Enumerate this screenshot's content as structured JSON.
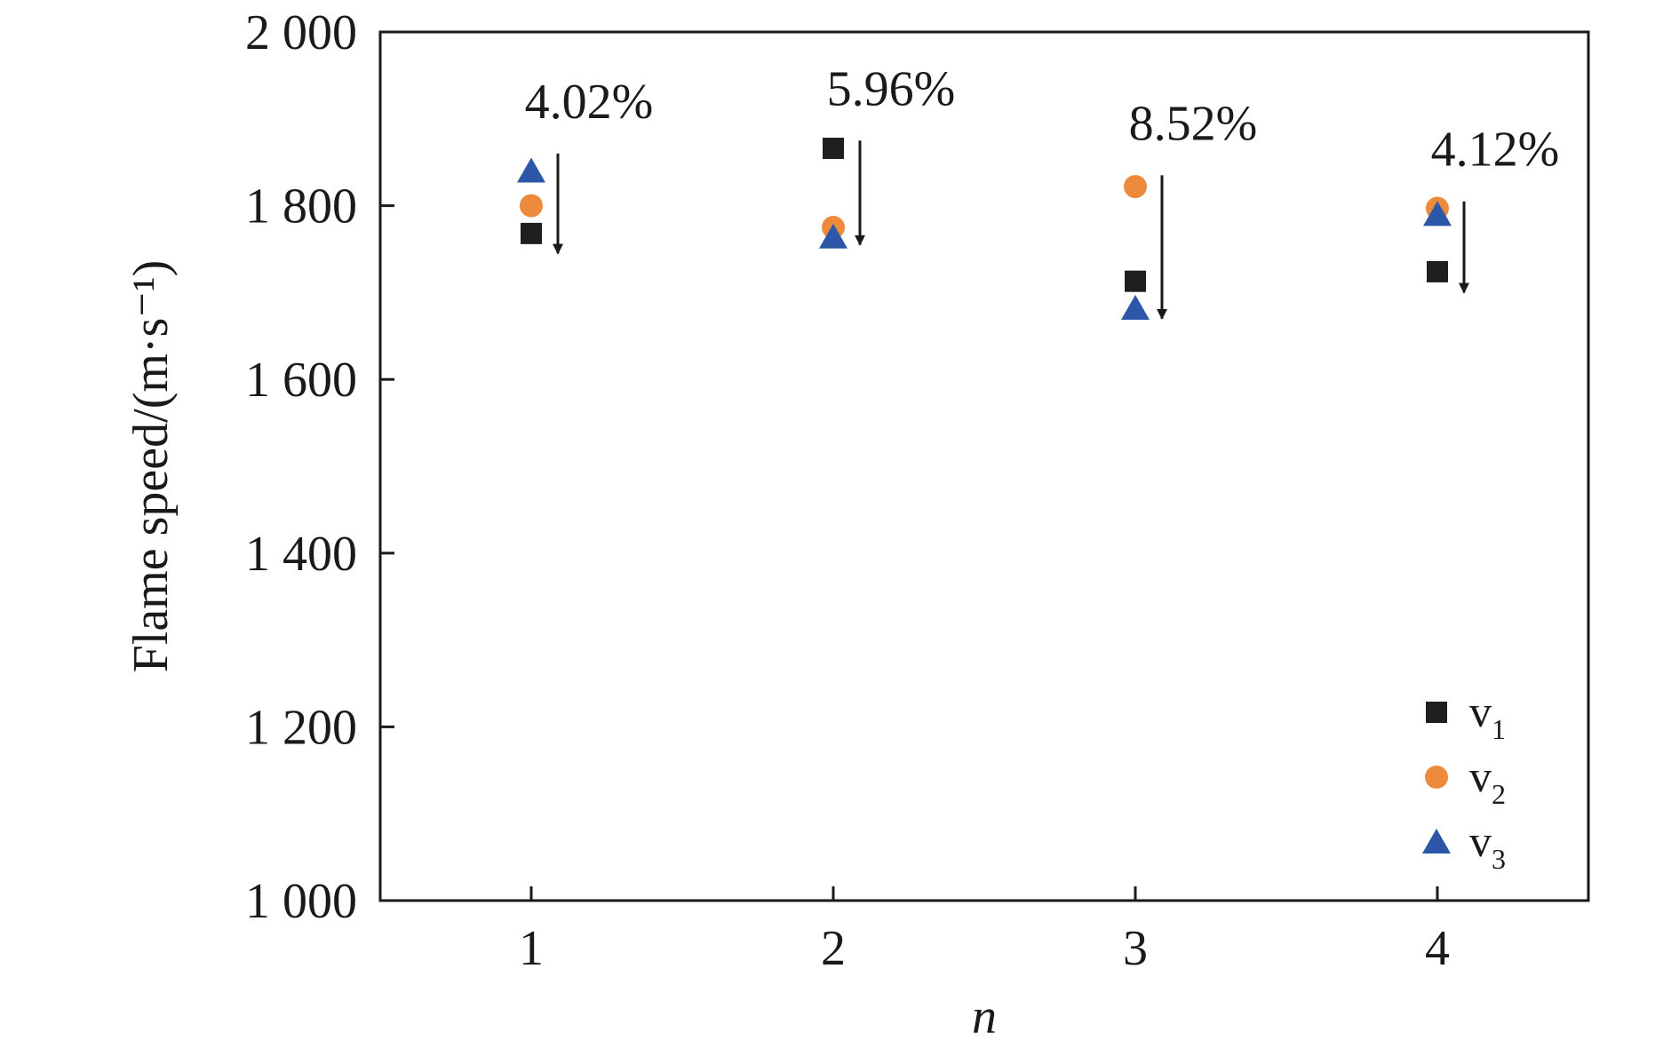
{
  "chart_data": {
    "type": "scatter",
    "xlabel": "n",
    "ylabel": "Flame speed/(m·s⁻¹)",
    "x_ticks": [
      "1",
      "2",
      "3",
      "4"
    ],
    "y_ticks": [
      "1 000",
      "1 200",
      "1 400",
      "1 600",
      "1 800",
      "2 000"
    ],
    "xlim": [
      0.5,
      4.5
    ],
    "ylim": [
      1000,
      2000
    ],
    "grid": false,
    "legend_position": "bottom-right",
    "series": [
      {
        "name": "v",
        "sub": "1",
        "marker": "square",
        "color": "#1f1f1f",
        "x": [
          1,
          2,
          3,
          4
        ],
        "y": [
          1768,
          1866,
          1713,
          1724
        ]
      },
      {
        "name": "v",
        "sub": "2",
        "marker": "circle",
        "color": "#ee8a3c",
        "x": [
          1,
          2,
          3,
          4
        ],
        "y": [
          1800,
          1775,
          1822,
          1797
        ]
      },
      {
        "name": "v",
        "sub": "3",
        "marker": "triangle",
        "color": "#2c57a8",
        "x": [
          1,
          2,
          3,
          4
        ],
        "y": [
          1840,
          1764,
          1682,
          1790
        ]
      }
    ],
    "annotations": [
      {
        "text": "4.02%",
        "x": 1,
        "arrow_from": 1860,
        "arrow_to": 1745
      },
      {
        "text": "5.96%",
        "x": 2,
        "arrow_from": 1875,
        "arrow_to": 1755
      },
      {
        "text": "8.52%",
        "x": 3,
        "arrow_from": 1835,
        "arrow_to": 1670
      },
      {
        "text": "4.12%",
        "x": 4,
        "arrow_from": 1805,
        "arrow_to": 1700
      }
    ]
  }
}
